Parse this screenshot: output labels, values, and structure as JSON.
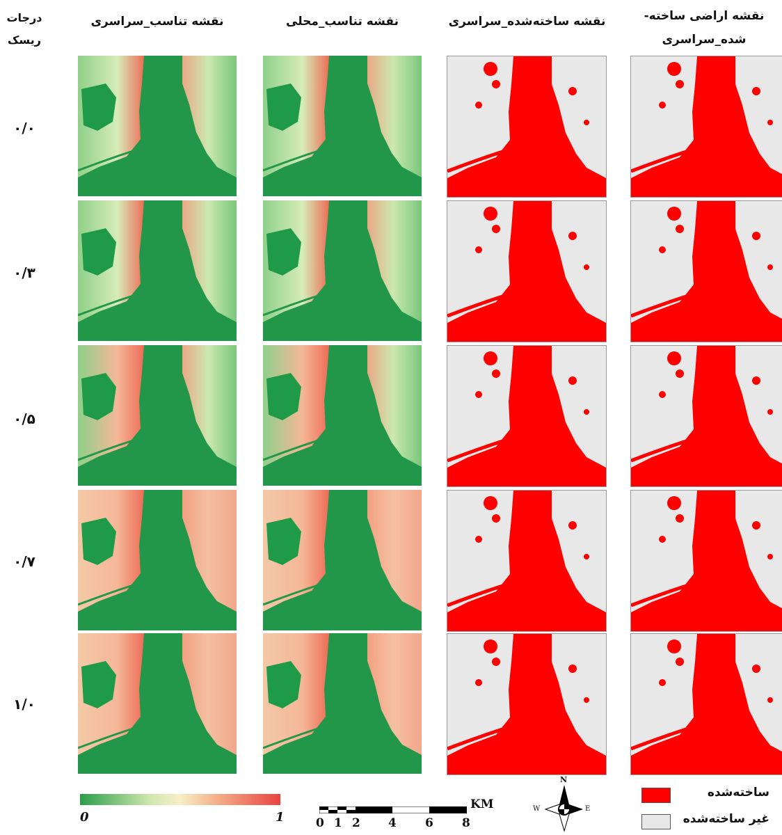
{
  "headers": {
    "risk_levels": "درجات ریسک",
    "global_suitability": "نقشه تناسب_سراسری",
    "local_suitability": "نقشه تناسب_محلی",
    "built_global": "نقشه ساخته‌شده_سراسری",
    "built_land_global": "نقشه اراضی ساخته-شده_سراسری"
  },
  "risk_levels": [
    "۰/۰",
    "۰/۳",
    "۰/۵",
    "۰/۷",
    "۱/۰"
  ],
  "color_ramp": {
    "min_label": "0",
    "max_label": "1",
    "low_color": "#2a9d48",
    "mid_color": "#f5f0c8",
    "high_color": "#e8433e"
  },
  "scale_bar": {
    "unit": "KM",
    "ticks": [
      "0",
      "1",
      "2",
      "4",
      "6",
      "8"
    ]
  },
  "north_arrow": {
    "n": "N",
    "w": "W",
    "e": "E"
  },
  "legend": {
    "built": {
      "label": "ساخته‌شده",
      "color": "#ff0000"
    },
    "not_built": {
      "label": "غیر ساخته‌شده",
      "color": "#e8e8e8"
    }
  }
}
